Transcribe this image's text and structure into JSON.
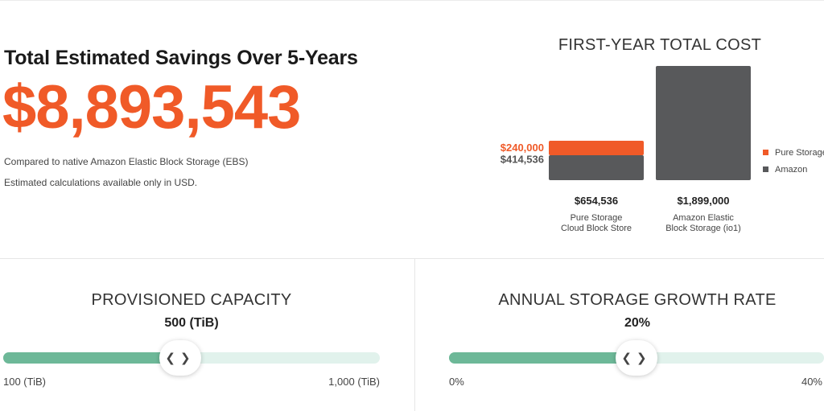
{
  "summary": {
    "title": "Total Estimated Savings Over 5-Years",
    "amount": "$8,893,543",
    "comparison_note": "Compared to native Amazon Elastic Block Storage (EBS)",
    "currency_note": "Estimated calculations available only in USD."
  },
  "chart_data": {
    "type": "bar",
    "title": "FIRST-YEAR TOTAL COST",
    "categories": [
      "Pure Storage Cloud Block Store",
      "Amazon Elastic Block Storage (io1)"
    ],
    "category_lines": [
      [
        "Pure Storage",
        "Cloud Block Store"
      ],
      [
        "Amazon Elastic",
        "Block Storage (io1)"
      ]
    ],
    "series": [
      {
        "name": "Amazon",
        "values": [
          414536,
          1899000
        ],
        "color": "#58595b"
      },
      {
        "name": "Pure Storage",
        "values": [
          240000,
          0
        ],
        "color": "#f05a28"
      }
    ],
    "totals": [
      654536,
      1899000
    ],
    "total_labels": [
      "$654,536",
      "$1,899,000"
    ],
    "segment_labels": {
      "pure": "$240,000",
      "amazon": "$414,536"
    },
    "legend": [
      "Pure Storage",
      "Amazon"
    ],
    "legend_position": "right",
    "ylim": [
      0,
      1899000
    ]
  },
  "colors": {
    "accent": "#f05a28",
    "amazon_bar": "#58595b",
    "slider_fill": "#6db898",
    "slider_track": "#e1f2ec"
  },
  "capacity": {
    "title": "PROVISIONED CAPACITY",
    "value_label": "500 (TiB)",
    "value": 500,
    "min": 100,
    "max": 1000,
    "min_label": "100 (TiB)",
    "max_label": "1,000 (TiB)",
    "position_fraction": 0.47
  },
  "growth": {
    "title": "ANNUAL STORAGE GROWTH RATE",
    "value_label": "20%",
    "value": 20,
    "min": 0,
    "max": 40,
    "min_label": "0%",
    "max_label": "40%",
    "position_fraction": 0.5
  },
  "icons": {
    "slider_handle": "left-right-chevrons-icon",
    "thumb_glyphs": "❮❯"
  }
}
